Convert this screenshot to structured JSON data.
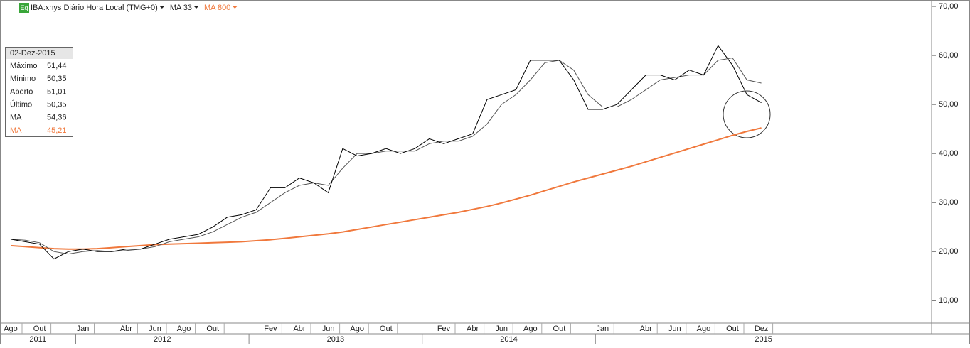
{
  "chart_data": {
    "type": "line",
    "title": "IBA:xnys Diário Hora Local (TMG+0)",
    "icon": "Eq",
    "x": [
      "2011-08",
      "2011-09",
      "2011-10",
      "2011-11",
      "2011-12",
      "2012-01",
      "2012-02",
      "2012-03",
      "2012-04",
      "2012-05",
      "2012-06",
      "2012-07",
      "2012-08",
      "2012-09",
      "2012-10",
      "2012-11",
      "2012-12",
      "2013-01",
      "2013-02",
      "2013-03",
      "2013-04",
      "2013-05",
      "2013-06",
      "2013-07",
      "2013-08",
      "2013-09",
      "2013-10",
      "2013-11",
      "2013-12",
      "2014-01",
      "2014-02",
      "2014-03",
      "2014-04",
      "2014-05",
      "2014-06",
      "2014-07",
      "2014-08",
      "2014-09",
      "2014-10",
      "2014-11",
      "2014-12",
      "2015-01",
      "2015-02",
      "2015-03",
      "2015-04",
      "2015-05",
      "2015-06",
      "2015-07",
      "2015-08",
      "2015-09",
      "2015-10",
      "2015-11",
      "2015-12"
    ],
    "series": [
      {
        "color": "#000000",
        "values": [
          22.5,
          22,
          21.5,
          18.5,
          20,
          20.5,
          20,
          20,
          20.5,
          20.5,
          21.5,
          22.5,
          23,
          23.5,
          25,
          27,
          27.5,
          28.5,
          33,
          33,
          35,
          34,
          32,
          41,
          39.5,
          40,
          41,
          40,
          41,
          43,
          42,
          43,
          44,
          51,
          52,
          53,
          59,
          59,
          59,
          55,
          49,
          49,
          50,
          53,
          56,
          56,
          55,
          57,
          56,
          62,
          58,
          52,
          50.35
        ]
      },
      {
        "name": "MA 33",
        "color": "#555555",
        "values": [
          22.5,
          22.3,
          21.8,
          20,
          19.5,
          20,
          20.2,
          20,
          20.2,
          20.5,
          21,
          22,
          22.5,
          23,
          24,
          25.5,
          27,
          28,
          30,
          32,
          33.5,
          34,
          33.5,
          37,
          40,
          40,
          40.5,
          40.5,
          40.5,
          42,
          42.5,
          42.5,
          43.5,
          46,
          50,
          52,
          55,
          58.5,
          59,
          57,
          52,
          49.5,
          49.5,
          51,
          53,
          55,
          55.5,
          56,
          56,
          59,
          59.5,
          55,
          54.36
        ]
      },
      {
        "name": "MA 800",
        "color": "#f0783c",
        "values": [
          21.2,
          21.0,
          20.8,
          20.6,
          20.5,
          20.5,
          20.6,
          20.8,
          21.0,
          21.2,
          21.4,
          21.5,
          21.6,
          21.7,
          21.8,
          21.9,
          22.0,
          22.2,
          22.4,
          22.7,
          23.0,
          23.3,
          23.6,
          24.0,
          24.5,
          25.0,
          25.5,
          26.0,
          26.5,
          27.0,
          27.5,
          28.0,
          28.6,
          29.2,
          29.9,
          30.7,
          31.5,
          32.4,
          33.3,
          34.2,
          35.0,
          35.8,
          36.6,
          37.4,
          38.3,
          39.2,
          40.1,
          41.0,
          41.9,
          42.8,
          43.7,
          44.5,
          45.21
        ]
      }
    ],
    "ylim": [
      5.4,
      71.3
    ],
    "yticks": [
      {
        "value": 10,
        "label": "10,00"
      },
      {
        "value": 20,
        "label": "20,00"
      },
      {
        "value": 30,
        "label": "30,00"
      },
      {
        "value": 40,
        "label": "40,00"
      },
      {
        "value": 50,
        "label": "50,00"
      },
      {
        "value": 60,
        "label": "60,00"
      },
      {
        "value": 70,
        "label": "70,00"
      }
    ],
    "xticks": [
      {
        "value": "2011-08",
        "label": "Ago"
      },
      {
        "value": "2011-10",
        "label": "Out"
      },
      {
        "value": "2012-01",
        "label": "Jan"
      },
      {
        "value": "2012-04",
        "label": "Abr"
      },
      {
        "value": "2012-06",
        "label": "Jun"
      },
      {
        "value": "2012-08",
        "label": "Ago"
      },
      {
        "value": "2012-10",
        "label": "Out"
      },
      {
        "value": "2013-02",
        "label": "Fev"
      },
      {
        "value": "2013-04",
        "label": "Abr"
      },
      {
        "value": "2013-06",
        "label": "Jun"
      },
      {
        "value": "2013-08",
        "label": "Ago"
      },
      {
        "value": "2013-10",
        "label": "Out"
      },
      {
        "value": "2014-02",
        "label": "Fev"
      },
      {
        "value": "2014-04",
        "label": "Abr"
      },
      {
        "value": "2014-06",
        "label": "Jun"
      },
      {
        "value": "2014-08",
        "label": "Ago"
      },
      {
        "value": "2014-10",
        "label": "Out"
      },
      {
        "value": "2015-01",
        "label": "Jan"
      },
      {
        "value": "2015-04",
        "label": "Abr"
      },
      {
        "value": "2015-06",
        "label": "Jun"
      },
      {
        "value": "2015-08",
        "label": "Ago"
      },
      {
        "value": "2015-10",
        "label": "Out"
      },
      {
        "value": "2015-12",
        "label": "Dez"
      }
    ],
    "years": [
      "2011",
      "2012",
      "2013",
      "2014",
      "2015"
    ],
    "grid": false,
    "info_panel": {
      "date": "02-Dez-2015",
      "rows": [
        [
          "Máximo",
          "51,44"
        ],
        [
          "Mínimo",
          "50,35"
        ],
        [
          "Aberto",
          "51,01"
        ],
        [
          "Último",
          "50,35"
        ],
        [
          "MA",
          "54,36"
        ],
        [
          "MA",
          "45,21"
        ]
      ]
    }
  }
}
